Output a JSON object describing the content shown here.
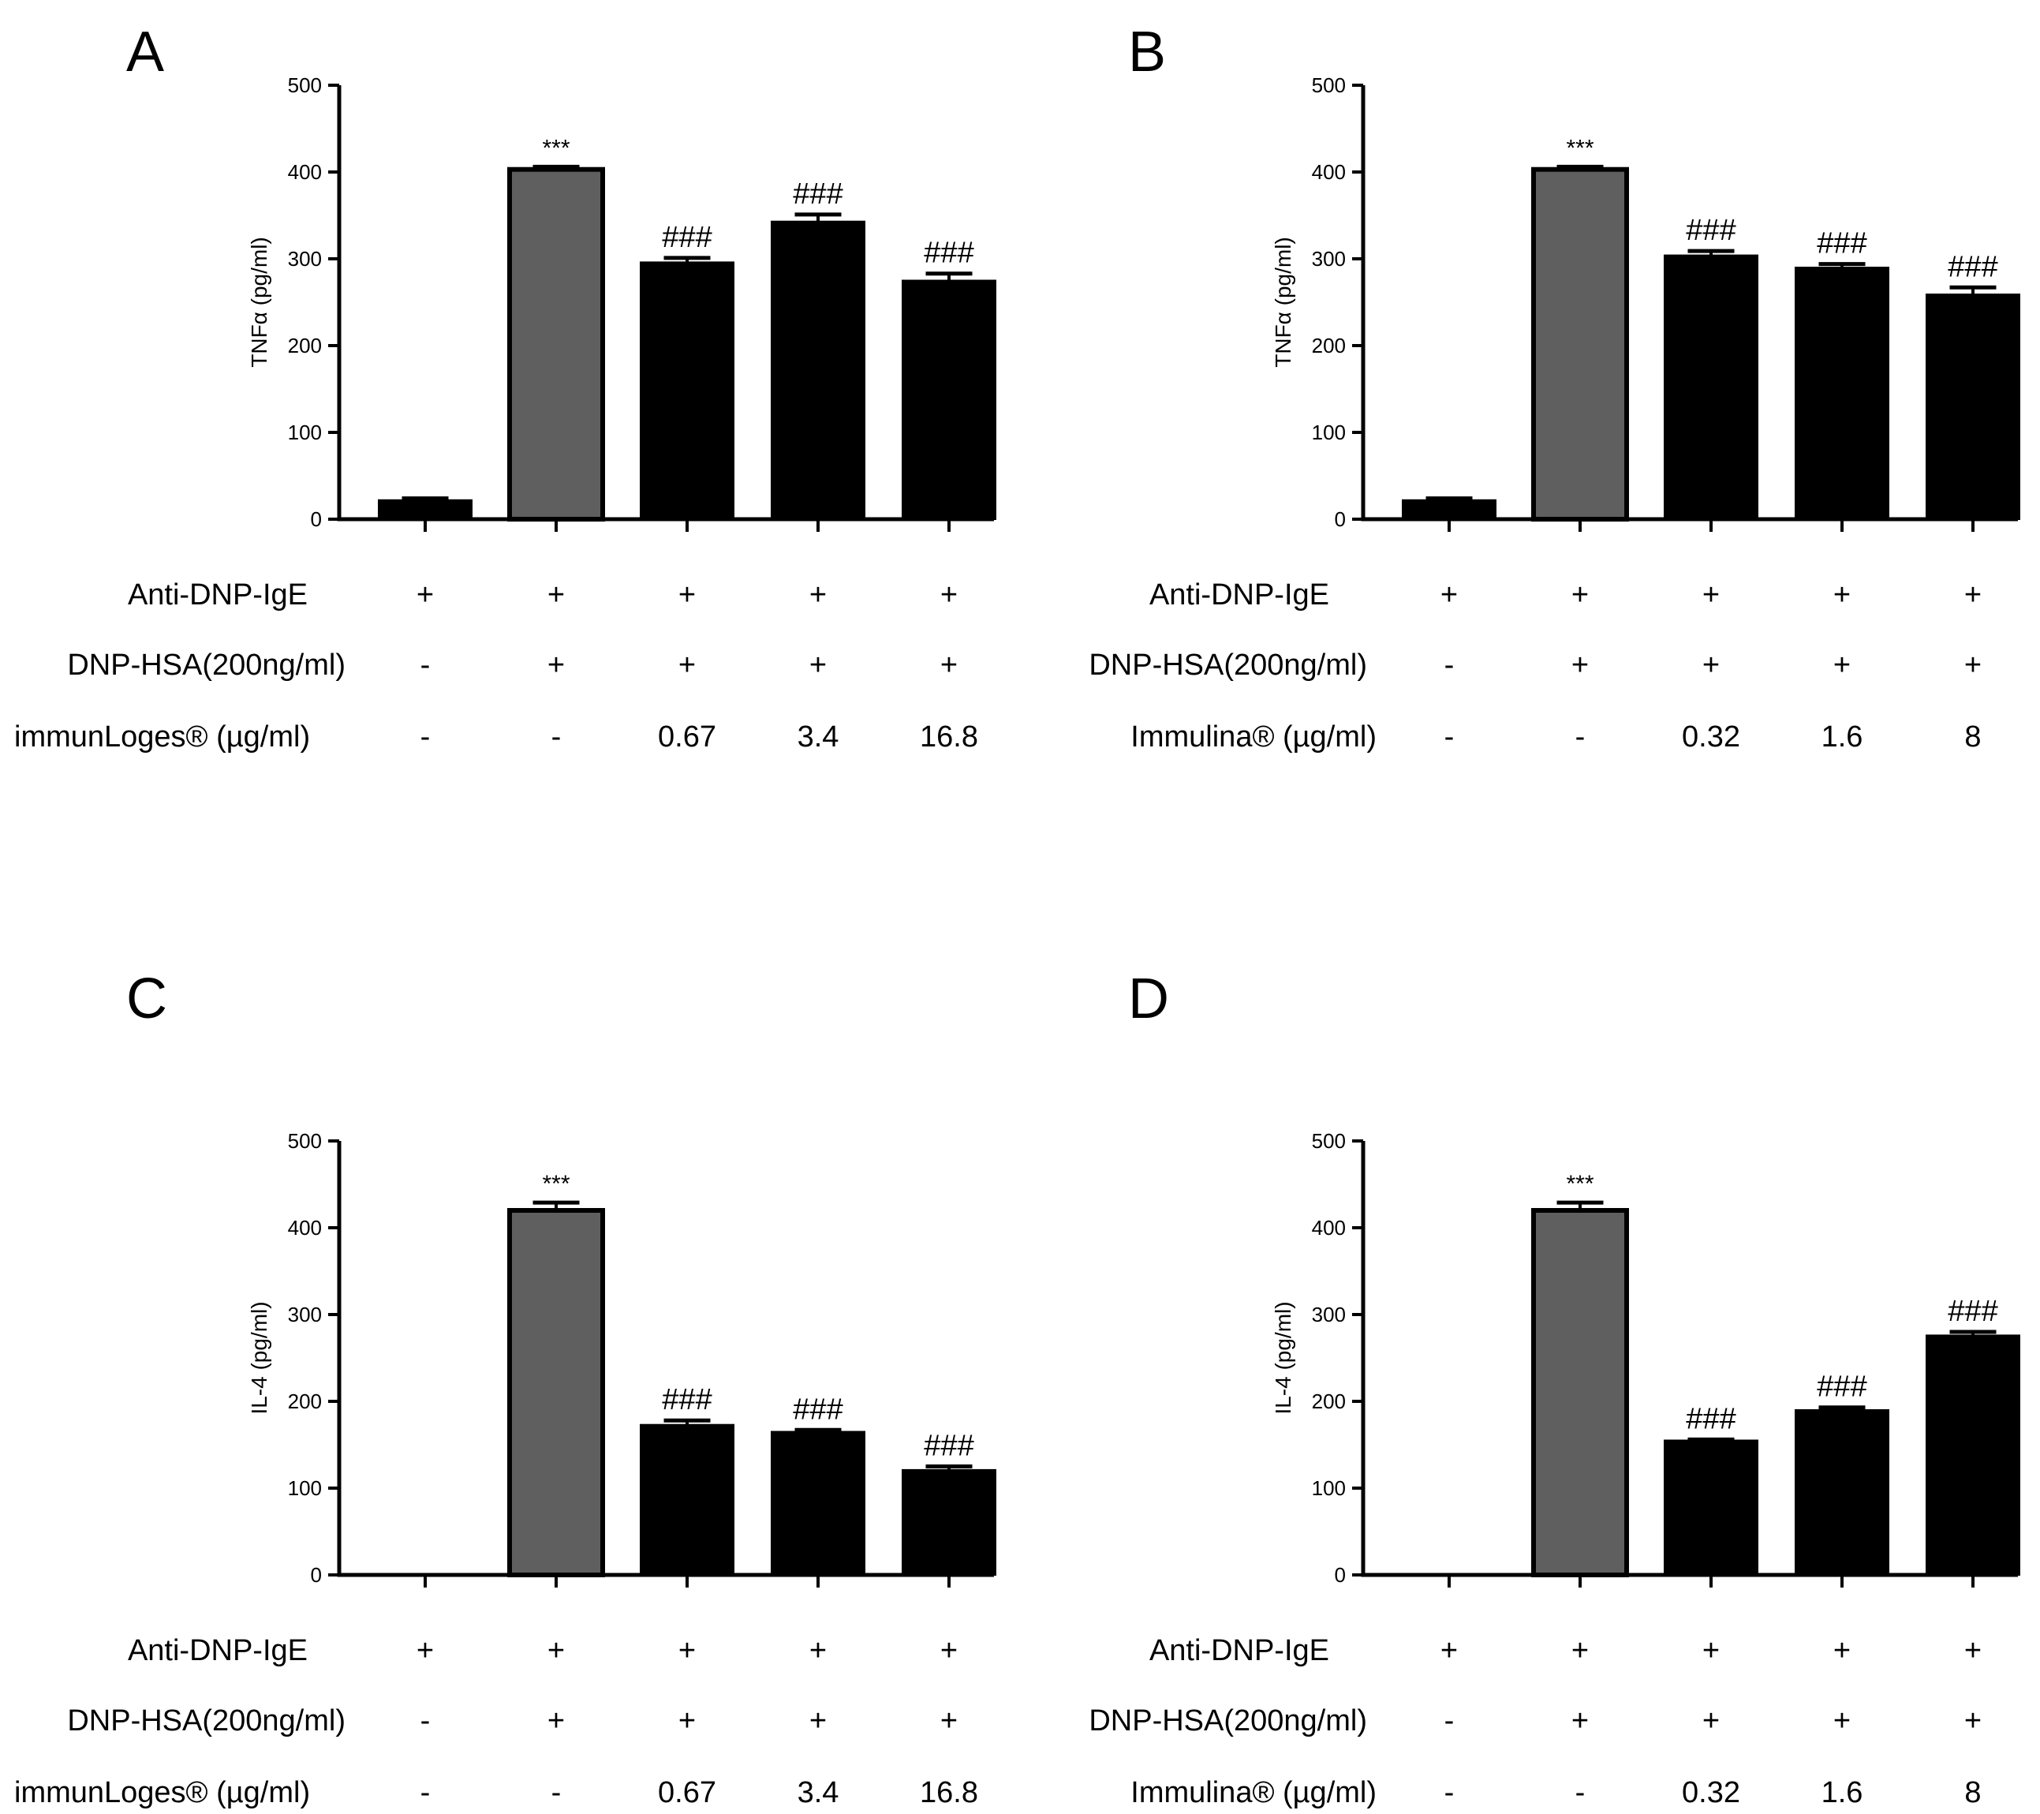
{
  "figure": {
    "panels": [
      {
        "letter": "A",
        "row_labels": [
          "Anti-DNP-IgE",
          "DNP-HSA(200ng/ml)",
          "immunLoges®  (µg/ml)"
        ],
        "conditions": [
          [
            "+",
            "+",
            "+",
            "+",
            "+"
          ],
          [
            "-",
            "+",
            "+",
            "+",
            "+"
          ],
          [
            "-",
            "-",
            "0.67",
            "3.4",
            "16.8"
          ]
        ]
      },
      {
        "letter": "B",
        "row_labels": [
          "Anti-DNP-IgE",
          "DNP-HSA(200ng/ml)",
          "Immulina® (µg/ml)"
        ],
        "conditions": [
          [
            "+",
            "+",
            "+",
            "+",
            "+"
          ],
          [
            "-",
            "+",
            "+",
            "+",
            "+"
          ],
          [
            "-",
            "-",
            "0.32",
            "1.6",
            "8"
          ]
        ]
      },
      {
        "letter": "C",
        "row_labels": [
          "Anti-DNP-IgE",
          "DNP-HSA(200ng/ml)",
          "immunLoges®  (µg/ml)"
        ],
        "conditions": [
          [
            "+",
            "+",
            "+",
            "+",
            "+"
          ],
          [
            "-",
            "+",
            "+",
            "+",
            "+"
          ],
          [
            "-",
            "-",
            "0.67",
            "3.4",
            "16.8"
          ]
        ]
      },
      {
        "letter": "D",
        "row_labels": [
          "Anti-DNP-IgE",
          "DNP-HSA(200ng/ml)",
          "Immulina® (µg/ml)"
        ],
        "conditions": [
          [
            "+",
            "+",
            "+",
            "+",
            "+"
          ],
          [
            "-",
            "+",
            "+",
            "+",
            "+"
          ],
          [
            "-",
            "-",
            "0.32",
            "1.6",
            "8"
          ]
        ]
      }
    ]
  },
  "colors": {
    "control_bar": "#5f5f5f",
    "bar": "#000000",
    "axis": "#000000"
  },
  "chart_data": [
    {
      "type": "bar",
      "title": "A",
      "ylabel": "TNFα (pg/ml)",
      "ylim": [
        0,
        500
      ],
      "yticks": [
        "0",
        "100",
        "200",
        "300",
        "400",
        "500"
      ],
      "values": [
        22,
        403,
        296,
        343,
        275
      ],
      "errors": [
        2,
        3,
        5,
        8,
        8
      ],
      "annotations": [
        "",
        "***",
        "###",
        "###",
        "###"
      ]
    },
    {
      "type": "bar",
      "title": "B",
      "ylabel": "TNFα (pg/ml)",
      "ylim": [
        0,
        500
      ],
      "yticks": [
        "0",
        "100",
        "200",
        "300",
        "400",
        "500"
      ],
      "values": [
        22,
        403,
        304,
        290,
        259
      ],
      "errors": [
        2,
        3,
        5,
        4,
        8
      ],
      "annotations": [
        "",
        "***",
        "###",
        "###",
        "###"
      ]
    },
    {
      "type": "bar",
      "title": "C",
      "ylabel": "IL-4 (pg/ml)",
      "ylim": [
        0,
        500
      ],
      "yticks": [
        "0",
        "100",
        "200",
        "300",
        "400",
        "500"
      ],
      "values": [
        0,
        420,
        173,
        165,
        121
      ],
      "errors": [
        0,
        9,
        5,
        2,
        4
      ],
      "annotations": [
        "",
        "***",
        "###",
        "###",
        "###"
      ]
    },
    {
      "type": "bar",
      "title": "D",
      "ylabel": "IL-4 (pg/ml)",
      "ylim": [
        0,
        500
      ],
      "yticks": [
        "0",
        "100",
        "200",
        "300",
        "400",
        "500"
      ],
      "values": [
        0,
        420,
        155,
        190,
        276
      ],
      "errors": [
        0,
        9,
        1,
        3,
        4
      ],
      "annotations": [
        "",
        "***",
        "###",
        "###",
        "###"
      ]
    }
  ]
}
